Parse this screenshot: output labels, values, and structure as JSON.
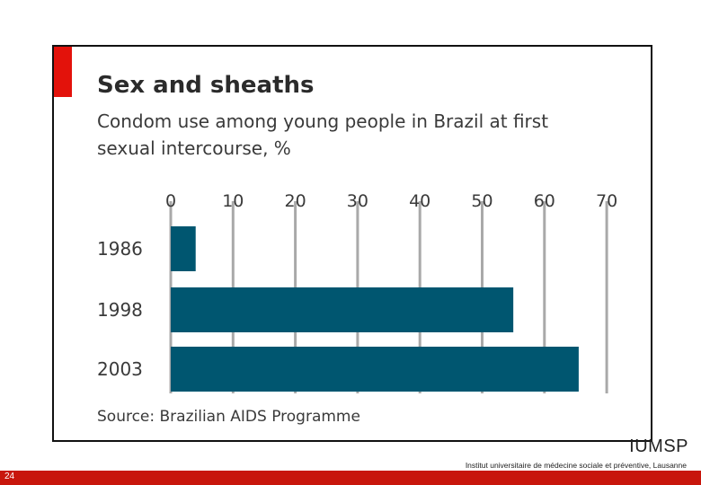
{
  "chart_data": {
    "type": "bar",
    "orientation": "horizontal",
    "title": "Sex and sheaths",
    "subtitle": "Condom use among young people in Brazil at first sexual intercourse, %",
    "source": "Source: Brazilian AIDS Programme",
    "categories": [
      "1986",
      "1998",
      "2003"
    ],
    "values": [
      4,
      55,
      65.5
    ],
    "xlim": [
      0,
      70
    ],
    "xticks": [
      0,
      10,
      20,
      30,
      40,
      50,
      60,
      70
    ],
    "xtick_labels": [
      "0",
      "10",
      "20",
      "30",
      "40",
      "50",
      "60",
      "70"
    ],
    "grid": true,
    "bar_color": "#005670",
    "accent_color": "#e3120b"
  },
  "footer": {
    "logo": "IUMSP",
    "institute": "Institut universitaire de médecine sociale et préventive, Lausanne",
    "page_number": "24",
    "bar_color": "#c8160c"
  }
}
